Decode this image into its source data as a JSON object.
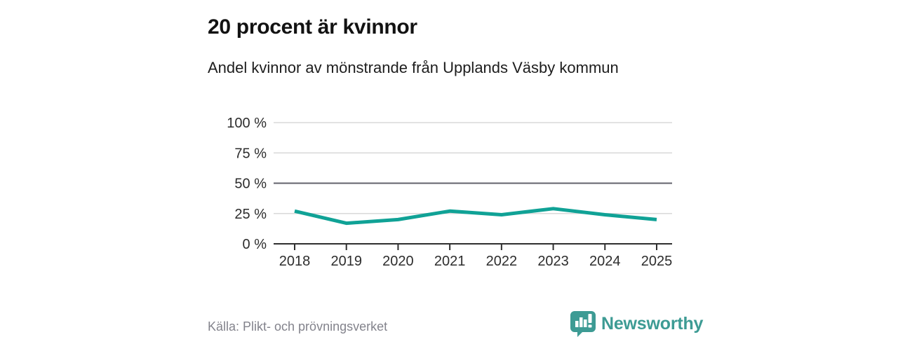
{
  "header": {
    "title": "20 procent är kvinnor",
    "subtitle": "Andel kvinnor av mönstrande från Upplands Väsby kommun"
  },
  "footer": {
    "source": "Källa: Plikt- och prövningsverket",
    "brand_name": "Newsworthy",
    "brand_icon": "speech-bubble-bar-chart-exclamation"
  },
  "colors": {
    "line": "#10a296",
    "brand": "#3d9b94",
    "grid_light": "#d9d9d9",
    "grid_emphasis": "#62626b",
    "axis": "#2f2f2f",
    "tick_label": "#2d2d2d",
    "source_text": "#83838c"
  },
  "chart_data": {
    "type": "line",
    "title": "20 procent är kvinnor",
    "subtitle": "Andel kvinnor av mönstrande från Upplands Väsby kommun",
    "source": "Källa: Plikt- och prövningsverket",
    "x": [
      2018,
      2019,
      2020,
      2021,
      2022,
      2023,
      2024,
      2025
    ],
    "series": [
      {
        "name": "Andel kvinnor av mönstrande, procent",
        "values": [
          27,
          17,
          20,
          27,
          24,
          29,
          24,
          20
        ]
      }
    ],
    "xlabel": "",
    "ylabel": "",
    "ylim": [
      0,
      100
    ],
    "yticks": [
      {
        "value": 0,
        "label": "0 %"
      },
      {
        "value": 25,
        "label": "25 %"
      },
      {
        "value": 50,
        "label": "50 %",
        "emphasis": true
      },
      {
        "value": 75,
        "label": "75 %"
      },
      {
        "value": 100,
        "label": "100 %"
      }
    ],
    "grid": "horizontal",
    "legend": "none"
  }
}
